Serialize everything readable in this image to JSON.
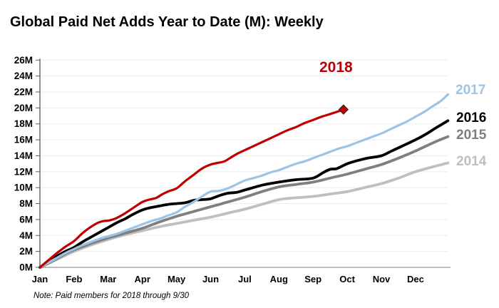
{
  "title": {
    "text": "Global Paid Net Adds Year to Date (M): Weekly"
  },
  "note": {
    "text": "Note: Paid members for 2018 through 9/30"
  },
  "chart_data": {
    "type": "line",
    "title": "Global Paid Net Adds Year to Date (M): Weekly",
    "xlabel": "",
    "ylabel": "",
    "unit": "millions of paid net adds",
    "x_axis": {
      "tick_labels": [
        "Jan",
        "Feb",
        "Mar",
        "Apr",
        "May",
        "Jun",
        "Jul",
        "Aug",
        "Sep",
        "Oct",
        "Nov",
        "Dec"
      ],
      "range_months": [
        0,
        12
      ]
    },
    "y_axis": {
      "min": 0,
      "max": 26,
      "step": 2,
      "tick_labels": [
        "26M",
        "24M",
        "22M",
        "20M",
        "18M",
        "16M",
        "14M",
        "12M",
        "10M",
        "8M",
        "6M",
        "4M",
        "2M",
        "0M"
      ]
    },
    "grid": "horizontal-light",
    "legend": {
      "position": "right-of-lines",
      "label_2018": {
        "text": "2018",
        "color": "#C00000"
      },
      "items": [
        {
          "label": "2017",
          "color": "#9DC3E6"
        },
        {
          "label": "2016",
          "color": "#000000"
        },
        {
          "label": "2015",
          "color": "#7F7F7F"
        },
        {
          "label": "2014",
          "color": "#BFBFBF"
        }
      ]
    },
    "series": [
      {
        "name": "2014",
        "color": "#BFBFBF",
        "stroke_width": 3.8,
        "end_marker": "none",
        "points": [
          [
            0,
            0
          ],
          [
            0.25,
            0.5
          ],
          [
            0.5,
            1.0
          ],
          [
            0.75,
            1.5
          ],
          [
            1,
            2.0
          ],
          [
            1.5,
            2.8
          ],
          [
            2,
            3.5
          ],
          [
            2.5,
            4.1
          ],
          [
            3,
            4.6
          ],
          [
            3.5,
            5.1
          ],
          [
            4,
            5.5
          ],
          [
            4.5,
            5.9
          ],
          [
            5,
            6.3
          ],
          [
            5.5,
            6.8
          ],
          [
            6,
            7.3
          ],
          [
            6.5,
            7.9
          ],
          [
            7,
            8.5
          ],
          [
            7.4,
            8.7
          ],
          [
            8,
            8.9
          ],
          [
            8.5,
            9.2
          ],
          [
            9,
            9.5
          ],
          [
            9.5,
            10.0
          ],
          [
            10,
            10.5
          ],
          [
            10.5,
            11.2
          ],
          [
            11,
            12.0
          ],
          [
            11.5,
            12.6
          ],
          [
            11.95,
            13.1
          ]
        ]
      },
      {
        "name": "2015",
        "color": "#7F7F7F",
        "stroke_width": 3.8,
        "end_marker": "none",
        "points": [
          [
            0,
            0
          ],
          [
            0.25,
            0.55
          ],
          [
            0.5,
            1.1
          ],
          [
            0.75,
            1.7
          ],
          [
            1,
            2.2
          ],
          [
            1.5,
            3.0
          ],
          [
            2,
            3.7
          ],
          [
            2.5,
            4.3
          ],
          [
            3,
            4.9
          ],
          [
            3.5,
            5.7
          ],
          [
            4,
            6.4
          ],
          [
            4.5,
            7.0
          ],
          [
            5,
            7.6
          ],
          [
            5.5,
            8.2
          ],
          [
            6,
            8.8
          ],
          [
            6.5,
            9.5
          ],
          [
            7,
            10.1
          ],
          [
            7.5,
            10.4
          ],
          [
            8,
            10.7
          ],
          [
            8.5,
            11.2
          ],
          [
            9,
            11.7
          ],
          [
            9.5,
            12.3
          ],
          [
            10,
            12.9
          ],
          [
            10.5,
            13.7
          ],
          [
            11,
            14.6
          ],
          [
            11.5,
            15.6
          ],
          [
            11.95,
            16.4
          ]
        ]
      },
      {
        "name": "2016",
        "color": "#000000",
        "stroke_width": 3.8,
        "end_marker": "none",
        "points": [
          [
            0,
            0
          ],
          [
            0.25,
            0.7
          ],
          [
            0.5,
            1.4
          ],
          [
            0.75,
            2.0
          ],
          [
            1,
            2.5
          ],
          [
            1.25,
            3.2
          ],
          [
            1.5,
            3.8
          ],
          [
            1.75,
            4.4
          ],
          [
            2,
            5.0
          ],
          [
            2.25,
            5.6
          ],
          [
            2.5,
            6.1
          ],
          [
            2.75,
            6.7
          ],
          [
            3,
            7.2
          ],
          [
            3.25,
            7.5
          ],
          [
            3.5,
            7.7
          ],
          [
            3.75,
            7.9
          ],
          [
            4,
            8.0
          ],
          [
            4.25,
            8.1
          ],
          [
            4.5,
            8.4
          ],
          [
            4.75,
            8.5
          ],
          [
            5,
            8.6
          ],
          [
            5.25,
            9.0
          ],
          [
            5.5,
            9.3
          ],
          [
            5.75,
            9.4
          ],
          [
            6,
            9.7
          ],
          [
            6.5,
            10.3
          ],
          [
            7,
            10.7
          ],
          [
            7.5,
            11.0
          ],
          [
            8,
            11.2
          ],
          [
            8.3,
            11.9
          ],
          [
            8.5,
            12.3
          ],
          [
            8.7,
            12.4
          ],
          [
            9,
            13.0
          ],
          [
            9.3,
            13.4
          ],
          [
            9.6,
            13.7
          ],
          [
            10,
            14.0
          ],
          [
            10.3,
            14.6
          ],
          [
            10.6,
            15.2
          ],
          [
            11,
            16.0
          ],
          [
            11.3,
            16.7
          ],
          [
            11.6,
            17.5
          ],
          [
            11.95,
            18.4
          ]
        ]
      },
      {
        "name": "2017",
        "color": "#9DC3E6",
        "stroke_width": 3.2,
        "end_marker": "none",
        "points": [
          [
            0,
            0
          ],
          [
            0.25,
            0.6
          ],
          [
            0.5,
            1.2
          ],
          [
            0.75,
            1.8
          ],
          [
            1,
            2.3
          ],
          [
            1.25,
            2.8
          ],
          [
            1.5,
            3.2
          ],
          [
            1.75,
            3.6
          ],
          [
            2,
            3.9
          ],
          [
            2.25,
            4.2
          ],
          [
            2.5,
            4.6
          ],
          [
            2.75,
            5.0
          ],
          [
            3,
            5.4
          ],
          [
            3.25,
            5.8
          ],
          [
            3.5,
            6.1
          ],
          [
            3.75,
            6.5
          ],
          [
            4,
            6.9
          ],
          [
            4.25,
            7.6
          ],
          [
            4.5,
            8.2
          ],
          [
            4.75,
            8.9
          ],
          [
            5,
            9.5
          ],
          [
            5.25,
            9.6
          ],
          [
            5.5,
            9.9
          ],
          [
            5.75,
            10.4
          ],
          [
            6,
            10.9
          ],
          [
            6.25,
            11.2
          ],
          [
            6.5,
            11.5
          ],
          [
            6.75,
            11.9
          ],
          [
            7,
            12.2
          ],
          [
            7.25,
            12.6
          ],
          [
            7.5,
            13.0
          ],
          [
            7.75,
            13.3
          ],
          [
            8,
            13.7
          ],
          [
            8.25,
            14.1
          ],
          [
            8.5,
            14.5
          ],
          [
            8.75,
            14.9
          ],
          [
            9,
            15.2
          ],
          [
            9.25,
            15.6
          ],
          [
            9.5,
            16.0
          ],
          [
            9.75,
            16.4
          ],
          [
            10,
            16.8
          ],
          [
            10.25,
            17.3
          ],
          [
            10.5,
            17.8
          ],
          [
            10.75,
            18.3
          ],
          [
            11,
            18.9
          ],
          [
            11.25,
            19.5
          ],
          [
            11.5,
            20.2
          ],
          [
            11.75,
            20.9
          ],
          [
            11.95,
            21.7
          ]
        ]
      },
      {
        "name": "2018",
        "color": "#C00000",
        "stroke_width": 3.2,
        "end_marker": "diamond",
        "points": [
          [
            0,
            0
          ],
          [
            0.25,
            0.9
          ],
          [
            0.5,
            1.8
          ],
          [
            0.75,
            2.6
          ],
          [
            1,
            3.3
          ],
          [
            1.25,
            4.3
          ],
          [
            1.5,
            5.1
          ],
          [
            1.7,
            5.6
          ],
          [
            1.85,
            5.8
          ],
          [
            2.05,
            5.9
          ],
          [
            2.25,
            6.2
          ],
          [
            2.5,
            6.8
          ],
          [
            2.75,
            7.5
          ],
          [
            3,
            8.2
          ],
          [
            3.2,
            8.5
          ],
          [
            3.4,
            8.7
          ],
          [
            3.6,
            9.2
          ],
          [
            3.8,
            9.6
          ],
          [
            4,
            9.9
          ],
          [
            4.25,
            10.8
          ],
          [
            4.5,
            11.6
          ],
          [
            4.75,
            12.4
          ],
          [
            5,
            12.9
          ],
          [
            5.2,
            13.1
          ],
          [
            5.4,
            13.3
          ],
          [
            5.6,
            13.8
          ],
          [
            5.8,
            14.3
          ],
          [
            6,
            14.7
          ],
          [
            6.25,
            15.2
          ],
          [
            6.5,
            15.7
          ],
          [
            6.75,
            16.2
          ],
          [
            7,
            16.7
          ],
          [
            7.25,
            17.2
          ],
          [
            7.5,
            17.6
          ],
          [
            7.75,
            18.1
          ],
          [
            8,
            18.5
          ],
          [
            8.25,
            18.9
          ],
          [
            8.55,
            19.3
          ],
          [
            8.89,
            19.8
          ]
        ]
      }
    ]
  }
}
